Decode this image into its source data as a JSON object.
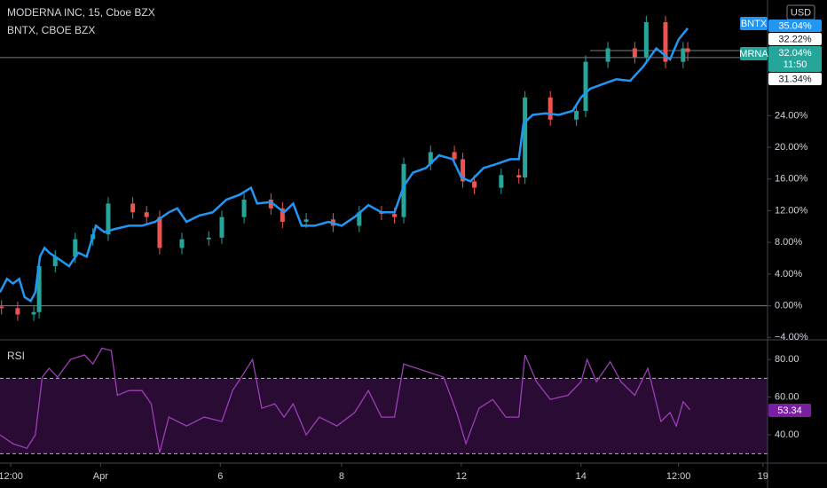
{
  "chart_data": {
    "type": "candlestick",
    "title": "MODERNA INC, 15, Cboe BZX",
    "subtitle": "BNTX, CBOE BZX",
    "currency": "USD",
    "xlim": [
      0,
      100
    ],
    "xticks": [
      {
        "value": 1.4,
        "label": "12:00"
      },
      {
        "value": 13.1,
        "label": "Apr"
      },
      {
        "value": 28.7,
        "label": "6"
      },
      {
        "value": 44.5,
        "label": "8"
      },
      {
        "value": 60.1,
        "label": "12"
      },
      {
        "value": 75.7,
        "label": "14"
      },
      {
        "value": 88.4,
        "label": "12:00"
      },
      {
        "value": 99.4,
        "label": "19"
      }
    ],
    "ylim": [
      -4.3,
      38.6
    ],
    "yticks": [
      {
        "value": -4,
        "label": "−4.00%"
      },
      {
        "value": 0,
        "label": "0.00%"
      },
      {
        "value": 4,
        "label": "4.00%"
      },
      {
        "value": 8,
        "label": "8.00%"
      },
      {
        "value": 12,
        "label": "12.00%"
      },
      {
        "value": 16,
        "label": "16.00%"
      },
      {
        "value": 20,
        "label": "20.00%"
      },
      {
        "value": 24,
        "label": "24.00%"
      }
    ],
    "candles": {
      "name": "MRNA",
      "up_color": "#26a69a",
      "down_color": "#ef5350",
      "last_label": "32.04%",
      "countdown": "11:50",
      "x": [
        0.2,
        2.3,
        4.4,
        5.1,
        7.2,
        9.8,
        12.1,
        14.1,
        17.3,
        19.1,
        20.8,
        23.7,
        27.2,
        28.9,
        31.8,
        35.3,
        36.8,
        39.9,
        43.4,
        46.8,
        49.7,
        51.4,
        52.6,
        56.1,
        59.2,
        60.3,
        61.8,
        65.3,
        67.6,
        68.4,
        71.7,
        75.1,
        76.3,
        79.2,
        82.7,
        84.2,
        86.7,
        89.0,
        89.6
      ],
      "open": [
        -0.1,
        -0.3,
        -1.1,
        -0.8,
        5.0,
        6.2,
        8.4,
        9.0,
        12.9,
        11.8,
        11.2,
        7.3,
        8.4,
        8.6,
        11.2,
        13.4,
        12.3,
        10.6,
        10.9,
        10.1,
        11.8,
        11.6,
        11.2,
        17.9,
        19.4,
        18.5,
        15.7,
        14.9,
        16.5,
        16.2,
        26.3,
        23.5,
        24.6,
        30.8,
        32.5,
        31.4,
        35.8,
        30.8,
        32.5
      ],
      "high": [
        0.7,
        0.5,
        0.0,
        5.8,
        7.0,
        9.2,
        9.8,
        13.7,
        13.7,
        12.6,
        12.0,
        9.2,
        9.4,
        12.0,
        14.2,
        14.2,
        13.1,
        11.7,
        11.7,
        12.6,
        12.6,
        12.4,
        18.7,
        20.2,
        20.2,
        19.3,
        16.5,
        17.3,
        17.3,
        27.1,
        27.1,
        25.4,
        31.6,
        33.3,
        33.3,
        36.6,
        36.6,
        33.3,
        33.3
      ],
      "low": [
        -1.1,
        -1.9,
        -1.9,
        -1.6,
        4.2,
        5.4,
        7.6,
        8.2,
        11.0,
        10.4,
        6.5,
        6.5,
        7.6,
        7.8,
        10.4,
        11.5,
        9.8,
        9.8,
        9.3,
        9.3,
        10.8,
        10.4,
        10.4,
        17.1,
        17.7,
        14.9,
        14.1,
        14.1,
        15.4,
        15.4,
        22.7,
        22.7,
        23.8,
        30.0,
        30.6,
        30.6,
        30.0,
        30.0,
        30.9
      ],
      "close": [
        -0.3,
        -1.1,
        -0.8,
        5.0,
        6.2,
        8.4,
        9.0,
        12.9,
        11.8,
        11.2,
        7.3,
        8.4,
        8.6,
        11.2,
        13.4,
        12.3,
        10.6,
        10.9,
        10.1,
        11.8,
        11.6,
        11.2,
        17.9,
        19.4,
        18.5,
        15.7,
        14.9,
        16.5,
        16.2,
        26.3,
        23.5,
        24.6,
        30.8,
        32.5,
        31.4,
        35.8,
        30.8,
        32.5,
        32.04
      ]
    },
    "series": [
      {
        "name": "BNTX",
        "color": "#2196f3",
        "last_label": "35.04%",
        "x": [
          0,
          0.9,
          1.7,
          2.5,
          3.2,
          4.0,
          4.6,
          5.2,
          5.8,
          6.4,
          7.2,
          8.1,
          9.0,
          10.2,
          11.3,
          12.5,
          13.6,
          15.0,
          16.8,
          18.5,
          20.2,
          22.0,
          23.1,
          24.3,
          26.0,
          27.7,
          29.5,
          31.2,
          32.7,
          33.5,
          35.3,
          37.0,
          38.2,
          39.3,
          41.0,
          42.8,
          44.5,
          46.2,
          48.0,
          49.7,
          51.4,
          52.6,
          53.8,
          55.5,
          57.2,
          59.0,
          60.1,
          61.3,
          63.0,
          64.7,
          66.5,
          67.6,
          68.2,
          69.4,
          71.1,
          72.8,
          74.6,
          75.7,
          76.9,
          78.6,
          80.3,
          82.1,
          83.8,
          85.5,
          87.3,
          88.4,
          89.6
        ],
        "values": [
          1.7,
          3.4,
          2.8,
          3.4,
          1.1,
          0.6,
          1.7,
          6.2,
          7.3,
          6.7,
          6.2,
          5.6,
          5.0,
          6.7,
          6.2,
          10.1,
          9.3,
          9.7,
          10.1,
          10.1,
          10.6,
          11.8,
          12.3,
          10.6,
          11.4,
          11.8,
          13.4,
          14.0,
          14.9,
          12.9,
          13.1,
          11.8,
          12.9,
          10.1,
          10.1,
          10.6,
          10.1,
          11.2,
          12.7,
          11.8,
          11.8,
          15.1,
          16.8,
          17.4,
          19.0,
          18.5,
          16.2,
          15.7,
          17.4,
          17.9,
          18.5,
          18.5,
          23.0,
          24.1,
          24.3,
          24.1,
          24.6,
          26.3,
          27.4,
          28.0,
          28.6,
          28.4,
          30.2,
          32.5,
          31.1,
          33.6,
          35.04
        ]
      }
    ],
    "price_lines": [
      {
        "value": 32.22,
        "label": "32.22%"
      },
      {
        "value": 31.34,
        "label": "31.34%"
      }
    ],
    "rsi": {
      "type": "line",
      "title": "RSI",
      "color": "#9c3fb8",
      "band_color": "#2a0b33",
      "last_label": "53.34",
      "ylim": [
        25,
        90.4
      ],
      "band": [
        30,
        70
      ],
      "yticks": [
        {
          "value": 40,
          "label": "40.00"
        },
        {
          "value": 60,
          "label": "60.00"
        },
        {
          "value": 80,
          "label": "80.00"
        }
      ],
      "x": [
        0,
        1.7,
        3.5,
        4.6,
        5.5,
        6.4,
        7.5,
        9.2,
        11.0,
        12.1,
        13.3,
        14.5,
        15.3,
        16.8,
        18.5,
        19.7,
        20.8,
        22.0,
        24.3,
        26.6,
        28.9,
        30.3,
        31.8,
        32.9,
        34.1,
        35.8,
        37.0,
        38.2,
        39.9,
        41.6,
        43.9,
        46.2,
        48.0,
        49.7,
        51.4,
        52.6,
        54.3,
        56.1,
        57.8,
        59.5,
        60.7,
        62.4,
        64.2,
        65.9,
        67.6,
        68.4,
        69.9,
        71.7,
        74.0,
        75.7,
        76.5,
        77.7,
        79.5,
        80.9,
        82.7,
        84.4,
        86.1,
        87.3,
        88.1,
        89.0,
        89.9
      ],
      "values": [
        40,
        35.3,
        32.9,
        40,
        70.6,
        75.3,
        70.6,
        80,
        82.4,
        77.6,
        86,
        84.7,
        61,
        63.5,
        63.5,
        56.5,
        30.6,
        49.4,
        44.7,
        49.4,
        47.1,
        63.5,
        72.9,
        80,
        54.1,
        56.5,
        49.4,
        56.5,
        40,
        49.4,
        44.7,
        51.8,
        63.5,
        49.4,
        49.4,
        77.6,
        75.3,
        72.9,
        70.6,
        51.8,
        35.3,
        54.1,
        58.8,
        49.4,
        49.4,
        82.4,
        68.2,
        58.8,
        61,
        68.2,
        80,
        68.2,
        78.8,
        68.2,
        61,
        75.3,
        47.1,
        51.8,
        44.7,
        57.6,
        53.34
      ]
    }
  }
}
